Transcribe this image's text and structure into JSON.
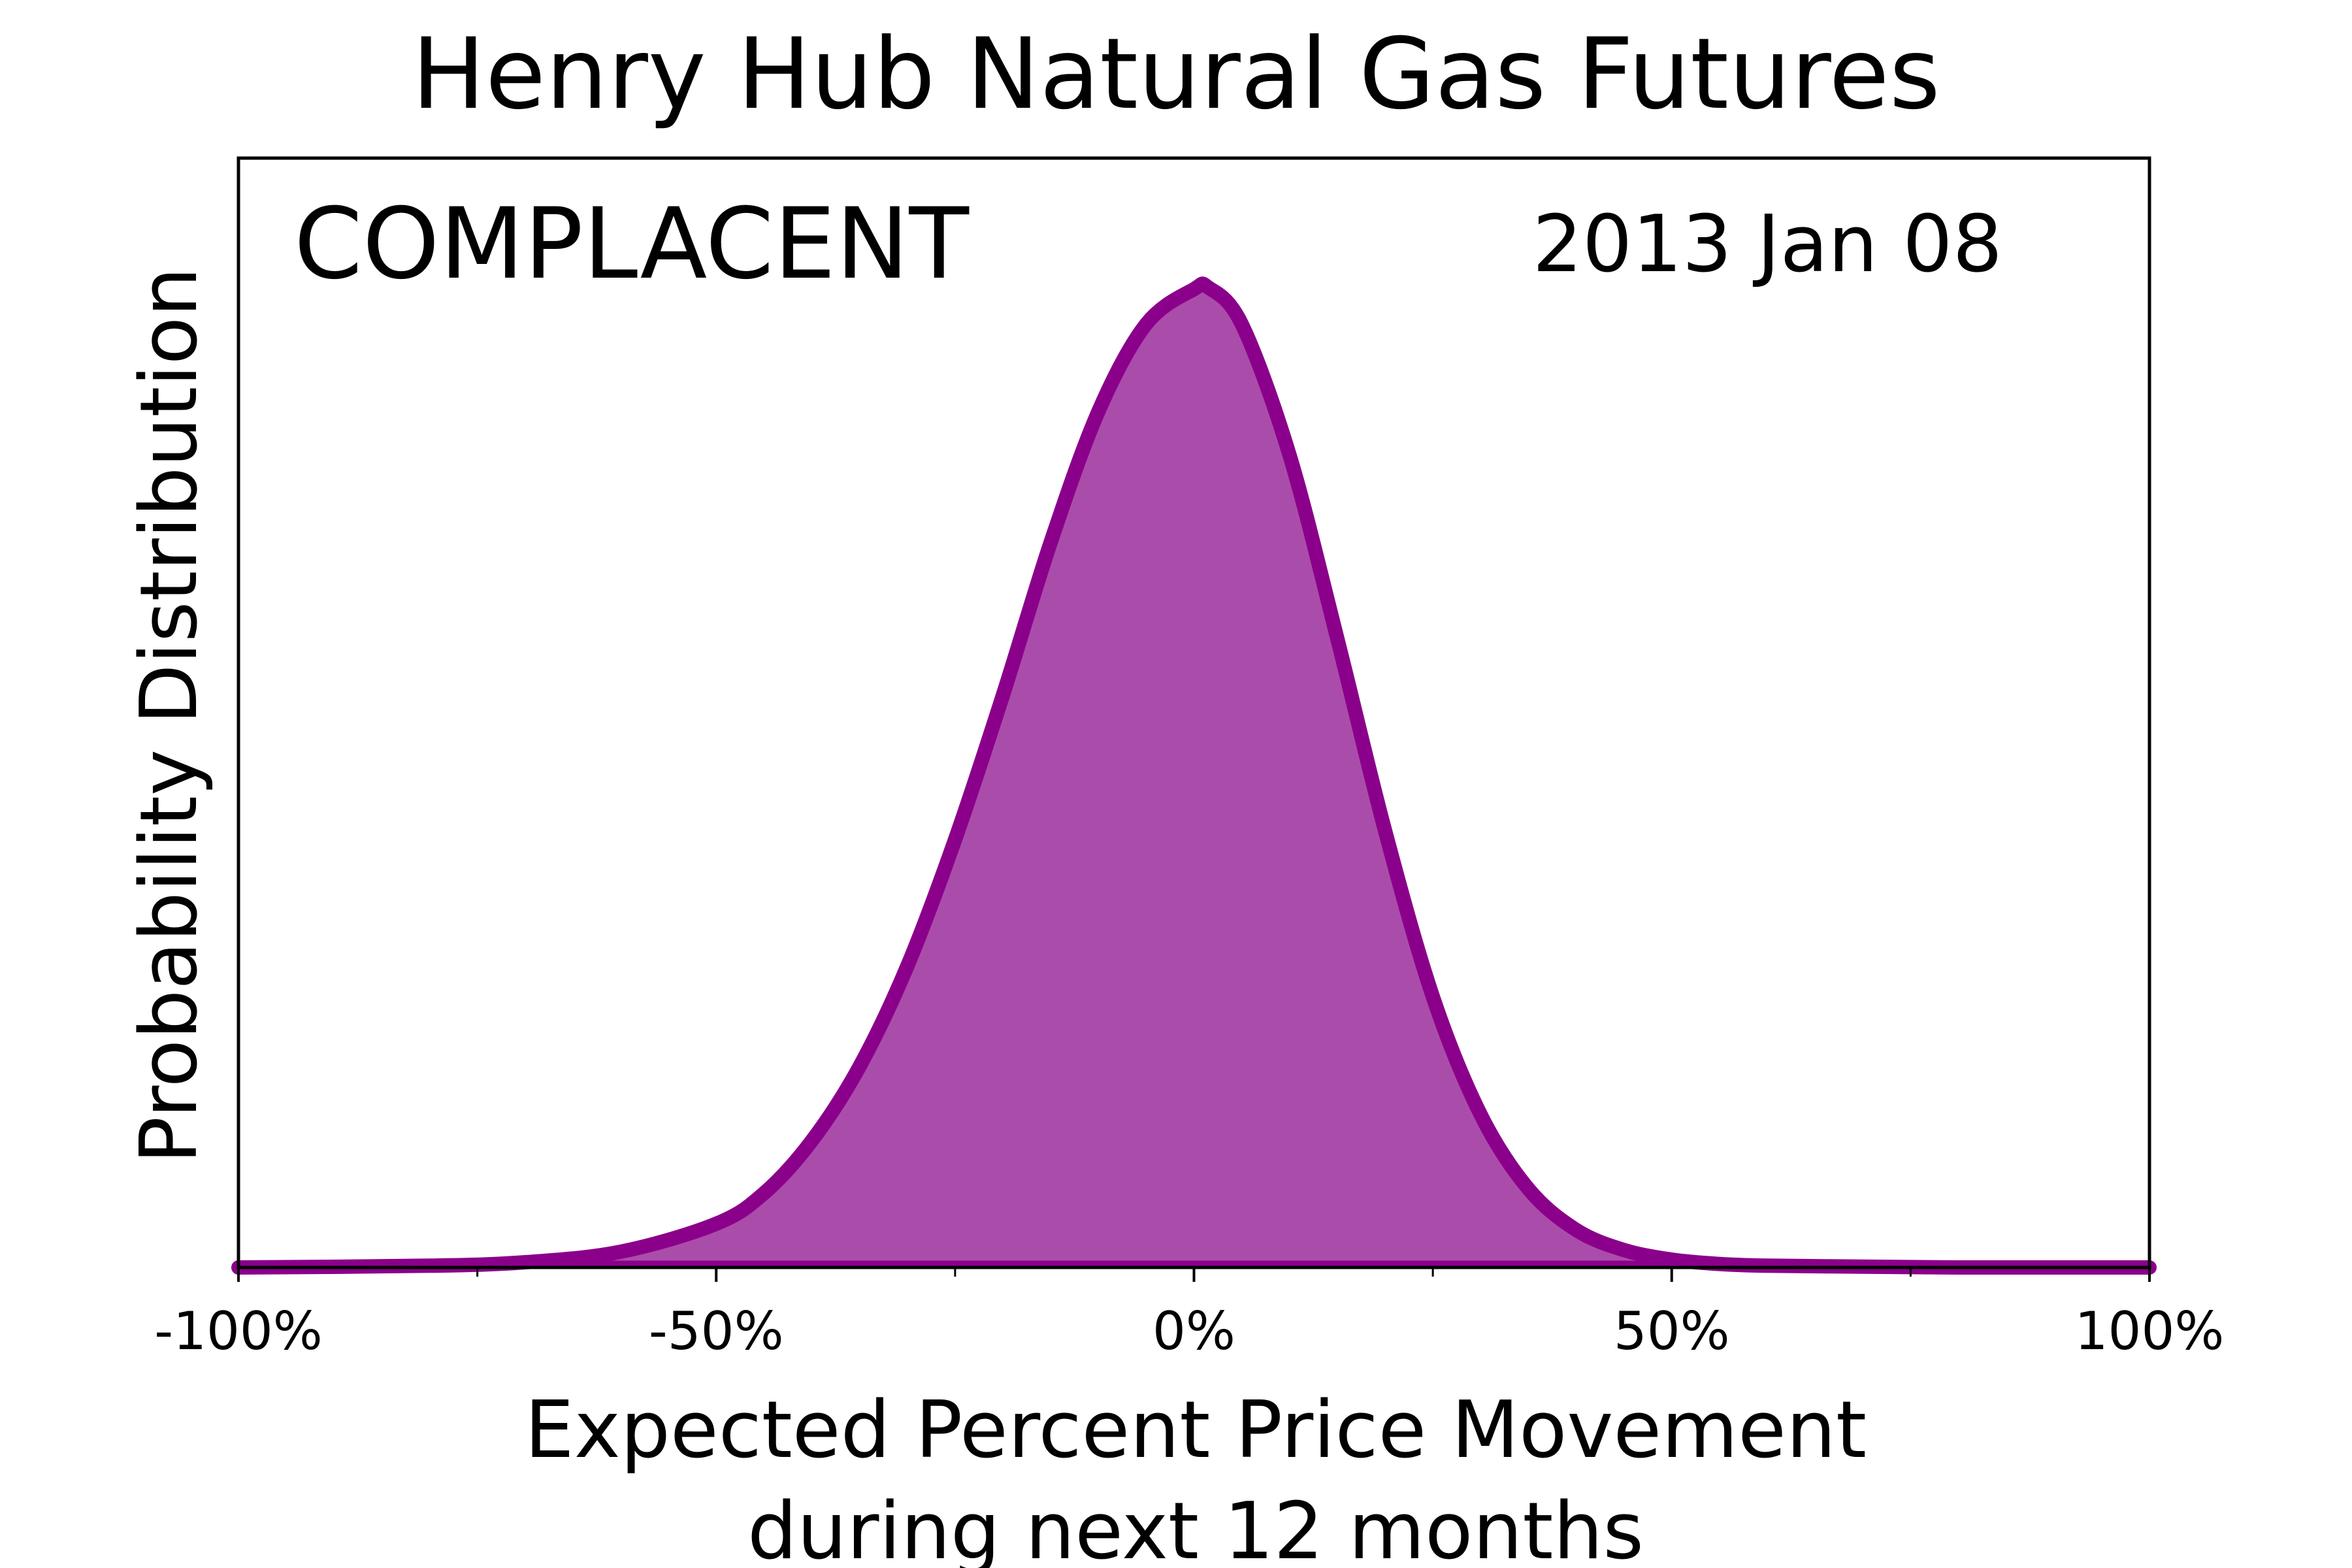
{
  "chart_data": {
    "type": "area",
    "title": "Henry Hub Natural Gas Futures",
    "sentiment_label": "COMPLACENT",
    "date_label": "2013 Jan 08",
    "xlabel_line1": "Expected Percent Price Movement",
    "xlabel_line2": "during next 12 months",
    "ylabel": "Probability Distribution",
    "xlim": [
      -100,
      100
    ],
    "ylim": [
      0,
      1.27
    ],
    "x_ticks": [
      {
        "value": -100,
        "label": "-100%"
      },
      {
        "value": -50,
        "label": "-50%"
      },
      {
        "value": 0,
        "label": "0%"
      },
      {
        "value": 50,
        "label": "50%"
      },
      {
        "value": 100,
        "label": "100%"
      }
    ],
    "x_minor_ticks": [
      -75,
      -25,
      25,
      75
    ],
    "series": [
      {
        "x": [
          -100,
          -80,
          -70,
          -60,
          -50,
          -45,
          -40,
          -35,
          -30,
          -25,
          -20,
          -15,
          -10,
          -5,
          0,
          1.5,
          5,
          10,
          15,
          20,
          25,
          30,
          35,
          40,
          45,
          50,
          55,
          60,
          70,
          80,
          100
        ],
        "y": [
          0.0,
          0.002,
          0.006,
          0.018,
          0.05,
          0.085,
          0.145,
          0.23,
          0.345,
          0.49,
          0.655,
          0.83,
          0.98,
          1.08,
          1.12,
          1.122,
          1.08,
          0.93,
          0.72,
          0.5,
          0.31,
          0.175,
          0.09,
          0.043,
          0.02,
          0.009,
          0.004,
          0.002,
          0.001,
          0.0,
          0.0
        ]
      }
    ],
    "colors": {
      "line": "#8b008b",
      "fill": "#aa4daa",
      "axis": "#000000"
    },
    "grid": false,
    "legend": "none"
  }
}
